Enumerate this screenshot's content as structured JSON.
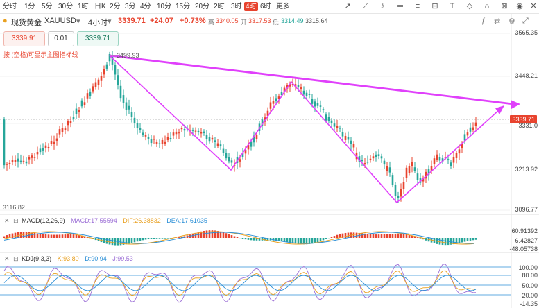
{
  "toolbar": {
    "timeframes": [
      "分时",
      "1分",
      "5分",
      "30分",
      "1时",
      "日K",
      "2分",
      "3分",
      "4分",
      "10分",
      "15分",
      "20分",
      "2时",
      "3时",
      "4时",
      "6时",
      "更多"
    ],
    "active_timeframe": "4时"
  },
  "symbol": {
    "name": "现货黄金",
    "code": "XAUUSD",
    "interval": "4小时",
    "price": "3339.71",
    "change": "+24.07",
    "change_pct": "+0.73%",
    "high_label": "高",
    "high": "3340.05",
    "open_label": "开",
    "open": "3317.53",
    "low_label": "低",
    "low": "3314.49",
    "close_prev": "3315.64"
  },
  "order": {
    "sell_price": "3339.91",
    "lot": "0.01",
    "buy_price": "3339.71"
  },
  "hint_text": "按 (空格)可显示主图指标线",
  "price_axis": {
    "labels": [
      "3565.35",
      "3448.21",
      "3331.0",
      "3213.92",
      "3096.77"
    ],
    "current_tag": "3339.71"
  },
  "annotations": {
    "high_marker": "3499.93",
    "low_marker": "3116.82",
    "low_marker2": "3096.77"
  },
  "macd": {
    "name": "MACD(12,26,9)",
    "macd": "MACD:17.55594",
    "dif": "DIF:26.38832",
    "dea": "DEA:17.61035",
    "axis": [
      "60.91392",
      "6.42827",
      "-48.05738"
    ]
  },
  "kdj": {
    "name": "KDJ(9,3,3)",
    "k": "K:93.80",
    "d": "D:90.94",
    "j": "J:99.53",
    "axis": [
      "100.00",
      "80.00",
      "50.00",
      "20.00",
      "-14.35"
    ]
  },
  "colors": {
    "up": "#e8432e",
    "down": "#26a69a",
    "trendline": "#e040fb",
    "accent": "#e8432e"
  }
}
